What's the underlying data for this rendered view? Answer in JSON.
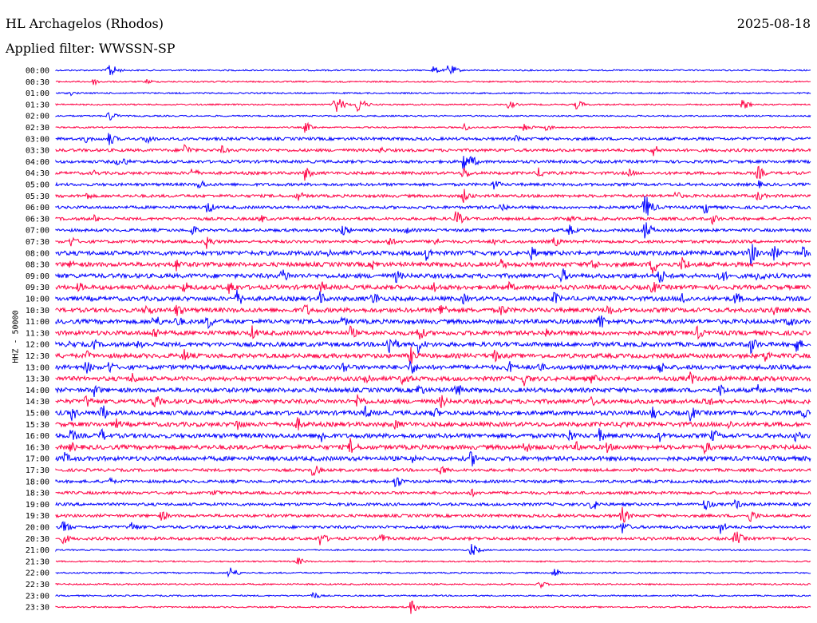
{
  "header": {
    "station": "HL Archagelos (Rhodos)",
    "date": "2025-08-18",
    "filter": "Applied filter: WWSSN-SP"
  },
  "chart_data": {
    "type": "line",
    "title": "HL Archagelos (Rhodos)",
    "date": "2025-08-18",
    "filter": "WWSSN-SP",
    "ylabel": "HHZ - 50000",
    "grid": false,
    "colors": [
      "#0000ff",
      "#ff0044"
    ],
    "row_labels": [
      "00:00",
      "00:30",
      "01:00",
      "01:30",
      "02:00",
      "02:30",
      "03:00",
      "03:30",
      "04:00",
      "04:30",
      "05:00",
      "05:30",
      "06:00",
      "06:30",
      "07:00",
      "07:30",
      "08:00",
      "08:30",
      "09:00",
      "09:30",
      "10:00",
      "10:30",
      "11:00",
      "11:30",
      "12:00",
      "12:30",
      "13:00",
      "13:30",
      "14:00",
      "14:30",
      "15:00",
      "15:30",
      "16:00",
      "16:30",
      "17:00",
      "17:30",
      "18:00",
      "18:30",
      "19:00",
      "19:30",
      "20:00",
      "20:30",
      "21:00",
      "21:30",
      "22:00",
      "22:30",
      "23:00",
      "23:30"
    ],
    "noise_level": [
      1,
      1,
      1,
      1,
      1,
      1,
      2,
      2,
      2,
      2,
      2,
      2,
      2,
      2,
      2,
      2,
      3,
      3,
      3,
      3,
      3,
      3,
      3,
      3,
      3,
      3,
      3,
      3,
      3,
      3,
      3,
      3,
      3,
      3,
      3,
      2,
      2,
      2,
      2,
      2,
      2,
      2,
      1,
      1,
      1,
      1,
      1,
      1
    ],
    "events": [
      [
        [
          0.07,
          12
        ],
        [
          0.52,
          10
        ],
        [
          0.5,
          6
        ]
      ],
      [
        [
          0.05,
          5
        ],
        [
          0.12,
          4
        ]
      ],
      [
        [
          0.02,
          3
        ]
      ],
      [
        [
          0.37,
          15
        ],
        [
          0.4,
          12
        ],
        [
          0.6,
          6
        ],
        [
          0.69,
          7
        ],
        [
          0.91,
          8
        ]
      ],
      [
        [
          0.07,
          8
        ]
      ],
      [
        [
          0.33,
          8
        ],
        [
          0.54,
          6
        ],
        [
          0.62,
          7
        ],
        [
          0.65,
          5
        ]
      ],
      [
        [
          0.04,
          6
        ],
        [
          0.07,
          10
        ],
        [
          0.12,
          8
        ],
        [
          0.61,
          6
        ]
      ],
      [
        [
          0.17,
          10
        ],
        [
          0.22,
          6
        ],
        [
          0.43,
          5
        ],
        [
          0.79,
          10
        ]
      ],
      [
        [
          0.08,
          5
        ],
        [
          0.09,
          6
        ],
        [
          0.54,
          14
        ],
        [
          0.55,
          9
        ]
      ],
      [
        [
          0.05,
          5
        ],
        [
          0.18,
          8
        ],
        [
          0.33,
          10
        ],
        [
          0.54,
          10
        ],
        [
          0.64,
          8
        ],
        [
          0.76,
          6
        ],
        [
          0.93,
          10
        ]
      ],
      [
        [
          0.19,
          8
        ],
        [
          0.58,
          8
        ],
        [
          0.93,
          6
        ]
      ],
      [
        [
          0.04,
          6
        ],
        [
          0.32,
          8
        ],
        [
          0.54,
          10
        ],
        [
          0.82,
          8
        ],
        [
          0.93,
          8
        ]
      ],
      [
        [
          0.2,
          10
        ],
        [
          0.59,
          8
        ],
        [
          0.78,
          20
        ],
        [
          0.86,
          10
        ]
      ],
      [
        [
          0.05,
          6
        ],
        [
          0.27,
          7
        ],
        [
          0.53,
          12
        ],
        [
          0.68,
          6
        ],
        [
          0.87,
          8
        ]
      ],
      [
        [
          0.18,
          8
        ],
        [
          0.38,
          10
        ],
        [
          0.46,
          8
        ],
        [
          0.68,
          8
        ],
        [
          0.78,
          14
        ]
      ],
      [
        [
          0.02,
          8
        ],
        [
          0.2,
          10
        ],
        [
          0.44,
          8
        ],
        [
          0.5,
          8
        ],
        [
          0.58,
          6
        ],
        [
          0.66,
          8
        ]
      ],
      [
        [
          0.36,
          8
        ],
        [
          0.49,
          12
        ],
        [
          0.63,
          10
        ],
        [
          0.92,
          18
        ],
        [
          0.95,
          12
        ],
        [
          0.99,
          10
        ]
      ],
      [
        [
          0.02,
          8
        ],
        [
          0.16,
          10
        ],
        [
          0.42,
          8
        ],
        [
          0.59,
          8
        ],
        [
          0.71,
          10
        ],
        [
          0.79,
          14
        ],
        [
          0.83,
          12
        ]
      ],
      [
        [
          0.3,
          12
        ],
        [
          0.45,
          10
        ],
        [
          0.67,
          12
        ],
        [
          0.8,
          12
        ],
        [
          0.88,
          12
        ],
        [
          0.93,
          10
        ]
      ],
      [
        [
          0.03,
          8
        ],
        [
          0.17,
          10
        ],
        [
          0.23,
          12
        ],
        [
          0.35,
          10
        ],
        [
          0.5,
          10
        ],
        [
          0.6,
          8
        ],
        [
          0.79,
          10
        ]
      ],
      [
        [
          0.24,
          12
        ],
        [
          0.35,
          10
        ],
        [
          0.42,
          12
        ],
        [
          0.54,
          8
        ],
        [
          0.66,
          10
        ],
        [
          0.83,
          10
        ],
        [
          0.9,
          10
        ]
      ],
      [
        [
          0.12,
          10
        ],
        [
          0.16,
          10
        ],
        [
          0.33,
          10
        ],
        [
          0.51,
          12
        ],
        [
          0.59,
          10
        ],
        [
          0.73,
          10
        ],
        [
          0.95,
          8
        ]
      ],
      [
        [
          0.13,
          12
        ],
        [
          0.16,
          10
        ],
        [
          0.2,
          12
        ],
        [
          0.38,
          8
        ],
        [
          0.72,
          14
        ],
        [
          0.97,
          10
        ]
      ],
      [
        [
          0.13,
          10
        ],
        [
          0.26,
          10
        ],
        [
          0.39,
          10
        ],
        [
          0.48,
          12
        ],
        [
          0.65,
          8
        ],
        [
          0.85,
          10
        ]
      ],
      [
        [
          0.02,
          8
        ],
        [
          0.05,
          8
        ],
        [
          0.11,
          10
        ],
        [
          0.44,
          18
        ],
        [
          0.48,
          12
        ],
        [
          0.92,
          14
        ],
        [
          0.98,
          12
        ]
      ],
      [
        [
          0.04,
          8
        ],
        [
          0.17,
          10
        ],
        [
          0.47,
          12
        ],
        [
          0.58,
          10
        ],
        [
          0.94,
          10
        ]
      ],
      [
        [
          0.04,
          10
        ],
        [
          0.07,
          10
        ],
        [
          0.38,
          10
        ],
        [
          0.47,
          12
        ],
        [
          0.6,
          10
        ],
        [
          0.64,
          8
        ],
        [
          0.8,
          10
        ]
      ],
      [
        [
          0.1,
          10
        ],
        [
          0.41,
          12
        ],
        [
          0.46,
          12
        ],
        [
          0.62,
          10
        ],
        [
          0.71,
          8
        ],
        [
          0.84,
          10
        ]
      ],
      [
        [
          0.05,
          10
        ],
        [
          0.48,
          10
        ],
        [
          0.53,
          12
        ],
        [
          0.88,
          10
        ],
        [
          0.93,
          8
        ]
      ],
      [
        [
          0.04,
          10
        ],
        [
          0.13,
          12
        ],
        [
          0.4,
          12
        ],
        [
          0.51,
          10
        ],
        [
          0.71,
          8
        ],
        [
          0.86,
          10
        ]
      ],
      [
        [
          0.02,
          12
        ],
        [
          0.06,
          14
        ],
        [
          0.41,
          10
        ],
        [
          0.5,
          10
        ],
        [
          0.79,
          10
        ],
        [
          0.84,
          12
        ],
        [
          0.99,
          8
        ]
      ],
      [
        [
          0.08,
          8
        ],
        [
          0.24,
          10
        ],
        [
          0.32,
          10
        ],
        [
          0.45,
          8
        ],
        [
          0.75,
          8
        ],
        [
          0.89,
          8
        ]
      ],
      [
        [
          0.02,
          10
        ],
        [
          0.06,
          10
        ],
        [
          0.35,
          12
        ],
        [
          0.68,
          10
        ],
        [
          0.72,
          10
        ],
        [
          0.8,
          8
        ],
        [
          0.87,
          10
        ],
        [
          0.98,
          8
        ]
      ],
      [
        [
          0.02,
          8
        ],
        [
          0.39,
          12
        ],
        [
          0.62,
          10
        ],
        [
          0.69,
          8
        ],
        [
          0.73,
          8
        ],
        [
          0.86,
          10
        ]
      ],
      [
        [
          0.01,
          10
        ],
        [
          0.47,
          8
        ],
        [
          0.55,
          12
        ],
        [
          0.97,
          6
        ]
      ],
      [
        [
          0.34,
          10
        ],
        [
          0.51,
          8
        ]
      ],
      [
        [
          0.07,
          6
        ],
        [
          0.45,
          10
        ]
      ],
      [
        [
          0.21,
          6
        ],
        [
          0.55,
          6
        ]
      ],
      [
        [
          0.71,
          10
        ],
        [
          0.86,
          10
        ],
        [
          0.9,
          8
        ]
      ],
      [
        [
          0.14,
          8
        ],
        [
          0.75,
          12
        ],
        [
          0.92,
          10
        ]
      ],
      [
        [
          0.01,
          10
        ],
        [
          0.1,
          8
        ],
        [
          0.75,
          10
        ],
        [
          0.88,
          10
        ]
      ],
      [
        [
          0.01,
          8
        ],
        [
          0.35,
          10
        ],
        [
          0.43,
          8
        ],
        [
          0.9,
          12
        ]
      ],
      [
        [
          0.55,
          10
        ]
      ],
      [
        [
          0.32,
          6
        ]
      ],
      [
        [
          0.23,
          10
        ],
        [
          0.66,
          8
        ]
      ],
      [
        [
          0.64,
          6
        ]
      ],
      [
        [
          0.34,
          6
        ]
      ],
      [
        [
          0.47,
          10
        ]
      ]
    ]
  }
}
